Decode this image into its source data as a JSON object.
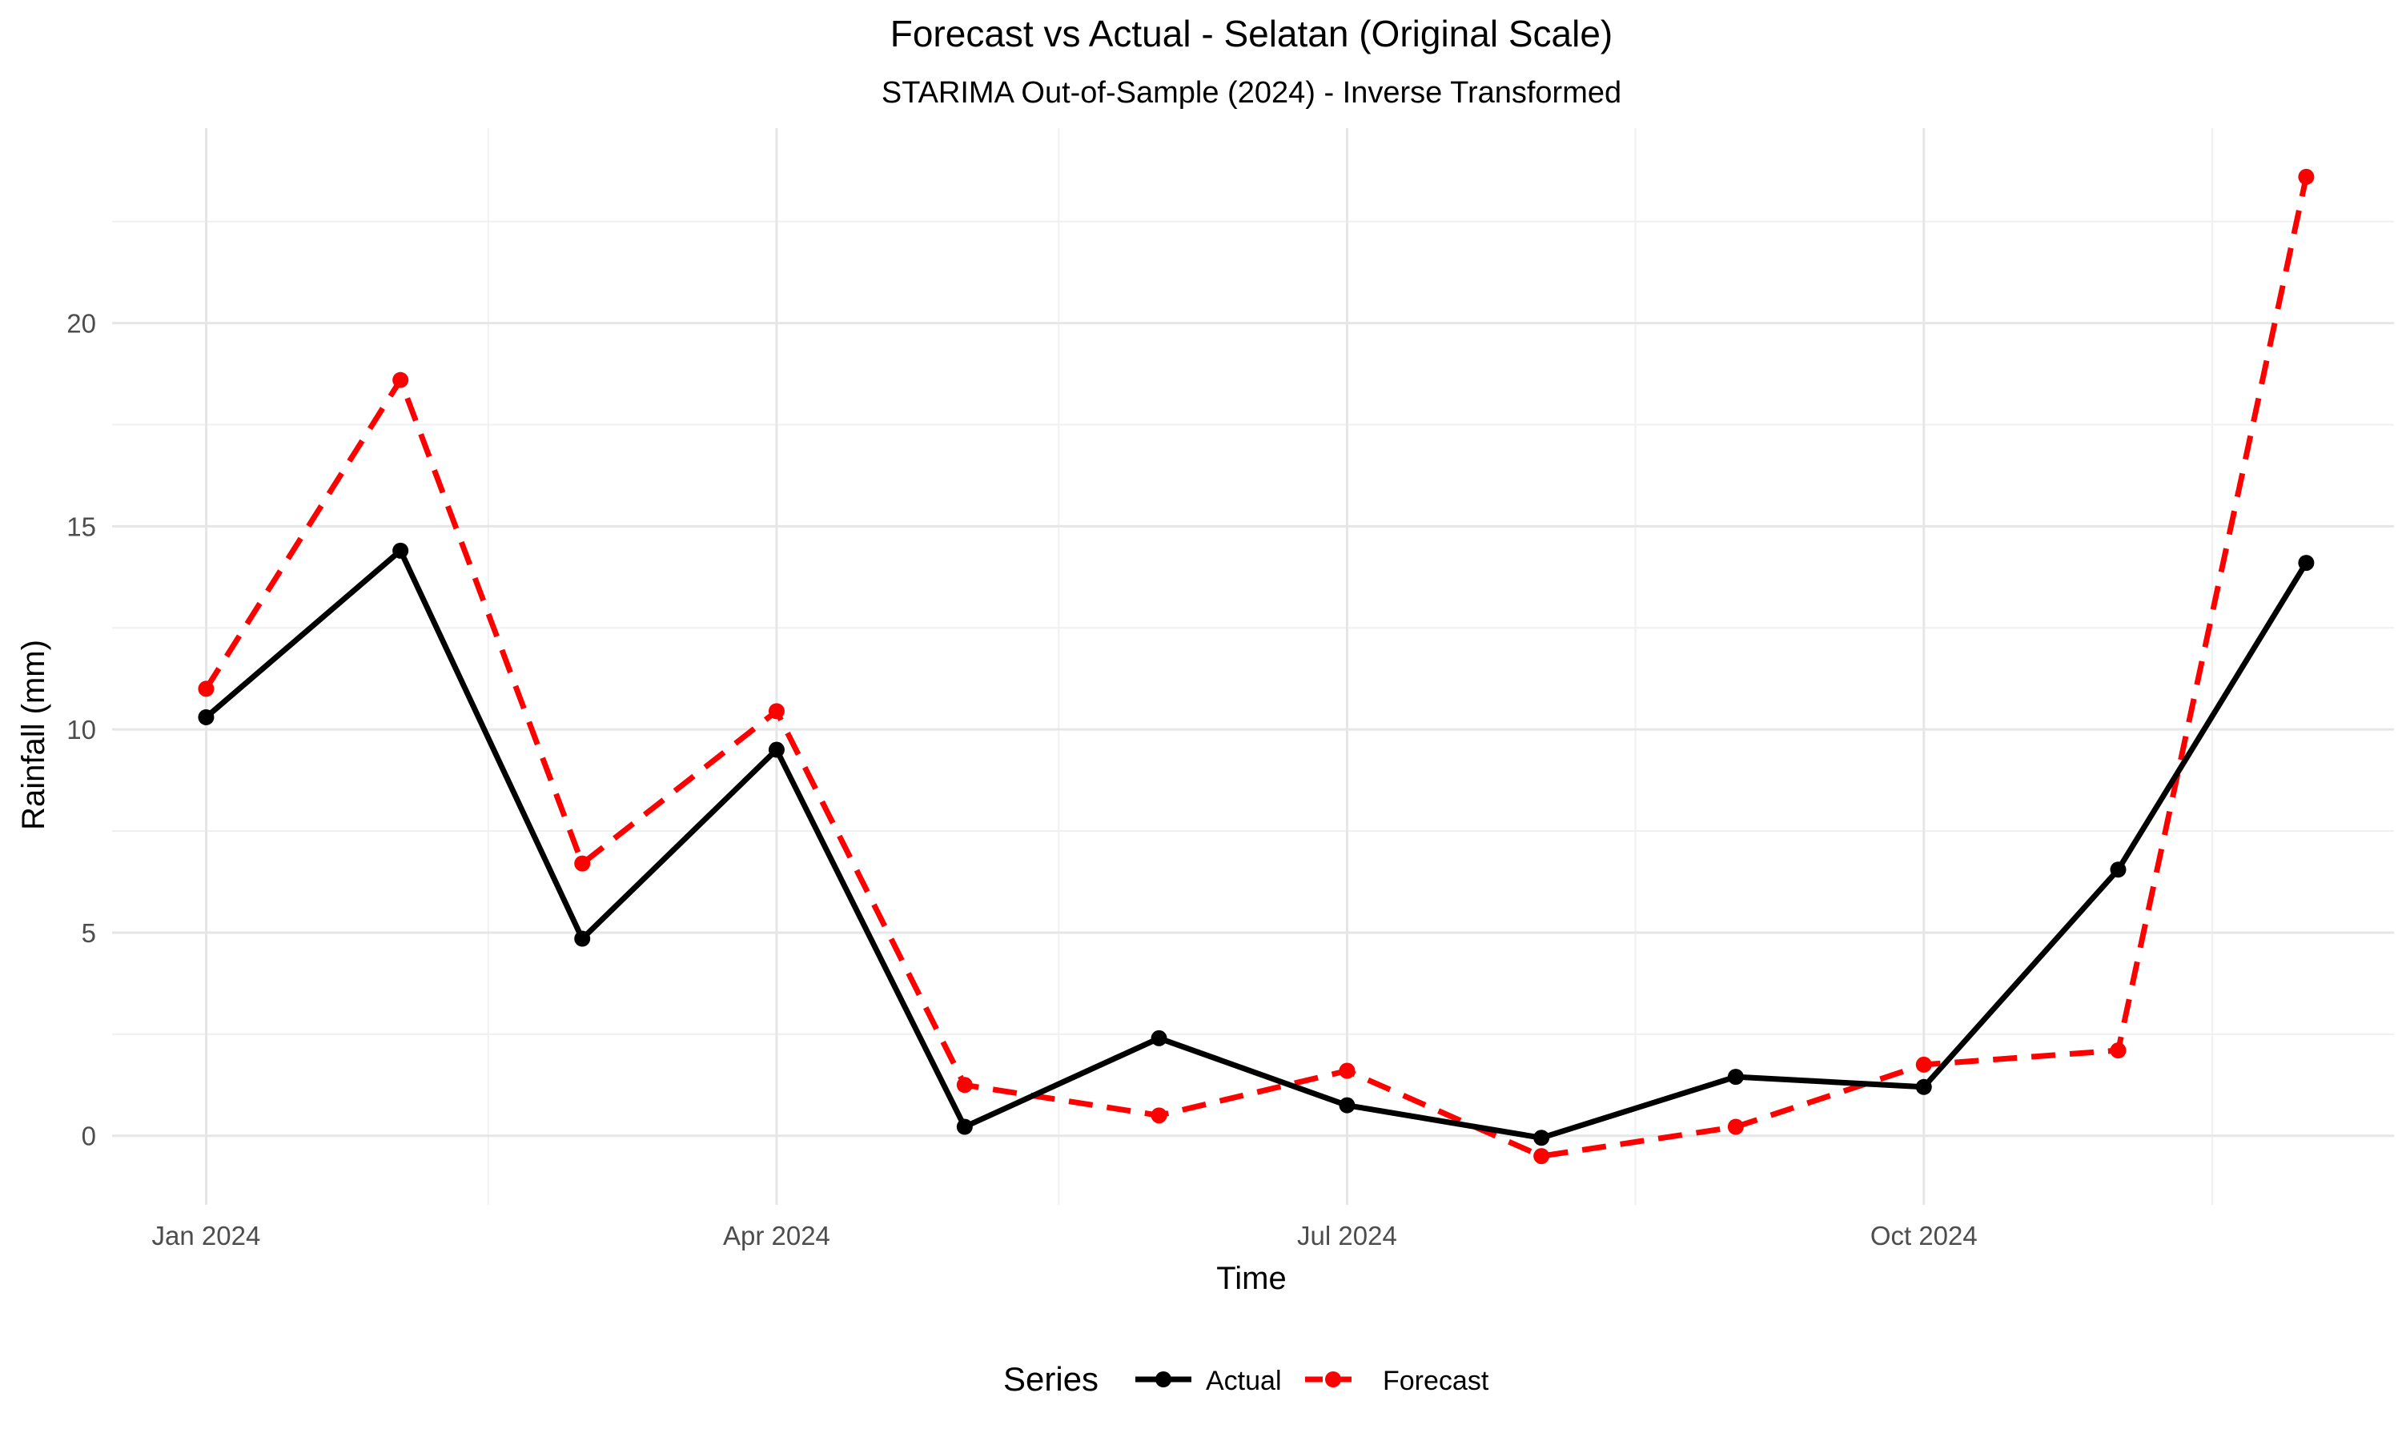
{
  "chart_data": {
    "type": "line",
    "title": "Forecast vs Actual - Selatan (Original Scale)",
    "subtitle": "STARIMA Out-of-Sample (2024) - Inverse Transformed",
    "xlabel": "Time",
    "ylabel": "Rainfall (mm)",
    "x": [
      "2024-01-01",
      "2024-02-01",
      "2024-03-01",
      "2024-04-01",
      "2024-05-01",
      "2024-06-01",
      "2024-07-01",
      "2024-08-01",
      "2024-09-01",
      "2024-10-01",
      "2024-11-01",
      "2024-12-01"
    ],
    "x_ticks": [
      {
        "date": "2024-01-01",
        "label": "Jan 2024"
      },
      {
        "date": "2024-04-01",
        "label": "Apr 2024"
      },
      {
        "date": "2024-07-01",
        "label": "Jul 2024"
      },
      {
        "date": "2024-10-01",
        "label": "Oct 2024"
      }
    ],
    "x_minor_ticks": [
      "2024-02-15",
      "2024-05-16",
      "2024-08-16",
      "2024-11-16"
    ],
    "xlim": [
      "2023-12-17",
      "2024-12-15"
    ],
    "y_ticks": [
      0,
      5,
      10,
      15,
      20
    ],
    "ylim": [
      -1.7,
      24.8
    ],
    "grid": true,
    "legend": {
      "title": "Series",
      "position": "bottom"
    },
    "series": [
      {
        "name": "Actual",
        "color": "#000000",
        "dash": "solid",
        "values": [
          10.3,
          14.4,
          4.85,
          9.5,
          0.22,
          2.4,
          0.75,
          -0.05,
          1.45,
          1.2,
          6.55,
          14.1
        ]
      },
      {
        "name": "Forecast",
        "color": "#ff0000",
        "dash": "dashed",
        "values": [
          11.0,
          18.6,
          6.7,
          10.45,
          1.25,
          0.5,
          1.6,
          -0.5,
          0.22,
          1.75,
          2.1,
          23.6
        ]
      }
    ]
  }
}
